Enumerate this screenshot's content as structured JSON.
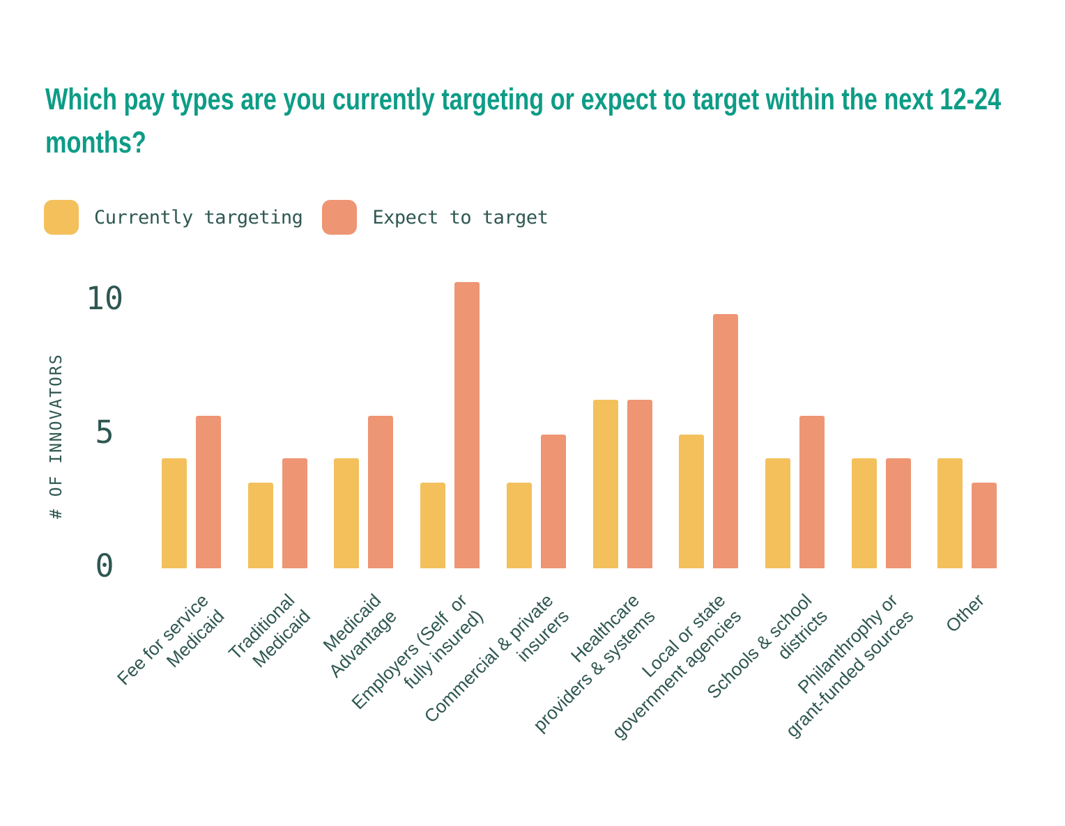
{
  "title": "Which pay types are you currently targeting or expect to target within the next 12-24 months?",
  "legend": [
    {
      "label": "Currently targeting",
      "color": "#F3C05C"
    },
    {
      "label": "Expect to target",
      "color": "#EE9574"
    }
  ],
  "y_axis": {
    "label": "# OF INNOVATORS"
  },
  "chart_data": {
    "type": "bar",
    "title": "Which pay types are you currently targeting or expect to target within the next 12-24 months?",
    "xlabel": "",
    "ylabel": "# OF INNOVATORS",
    "yticks": [
      10,
      5,
      0
    ],
    "ylim": [
      0,
      11
    ],
    "grid": false,
    "legend_position": "top-left",
    "categories": [
      "Fee for service\nMedicaid",
      "Traditional\nMedicaid",
      "Medicaid\nAdvantage",
      "Employers (Self  or\nfully insured)",
      "Commercial & private\ninsurers",
      "Healthcare\nproviders & systems",
      "Local or state\ngovernment agencies",
      "Schools & school\ndistricts",
      "Philanthrophy or\ngrant-funded sources",
      "Other"
    ],
    "series": [
      {
        "name": "Currently targeting",
        "color": "#F3C05C",
        "values": [
          4.1,
          3.2,
          4.1,
          3.2,
          3.2,
          6.3,
          5.0,
          4.1,
          4.1,
          4.1
        ]
      },
      {
        "name": "Expect to target",
        "color": "#EE9574",
        "values": [
          5.7,
          4.1,
          5.7,
          10.7,
          5.0,
          6.3,
          9.5,
          5.7,
          4.1,
          3.2
        ]
      }
    ]
  },
  "colors": {
    "title": "#0D9C86",
    "axis_text": "#2F5751",
    "background": "#FFFFFF"
  }
}
